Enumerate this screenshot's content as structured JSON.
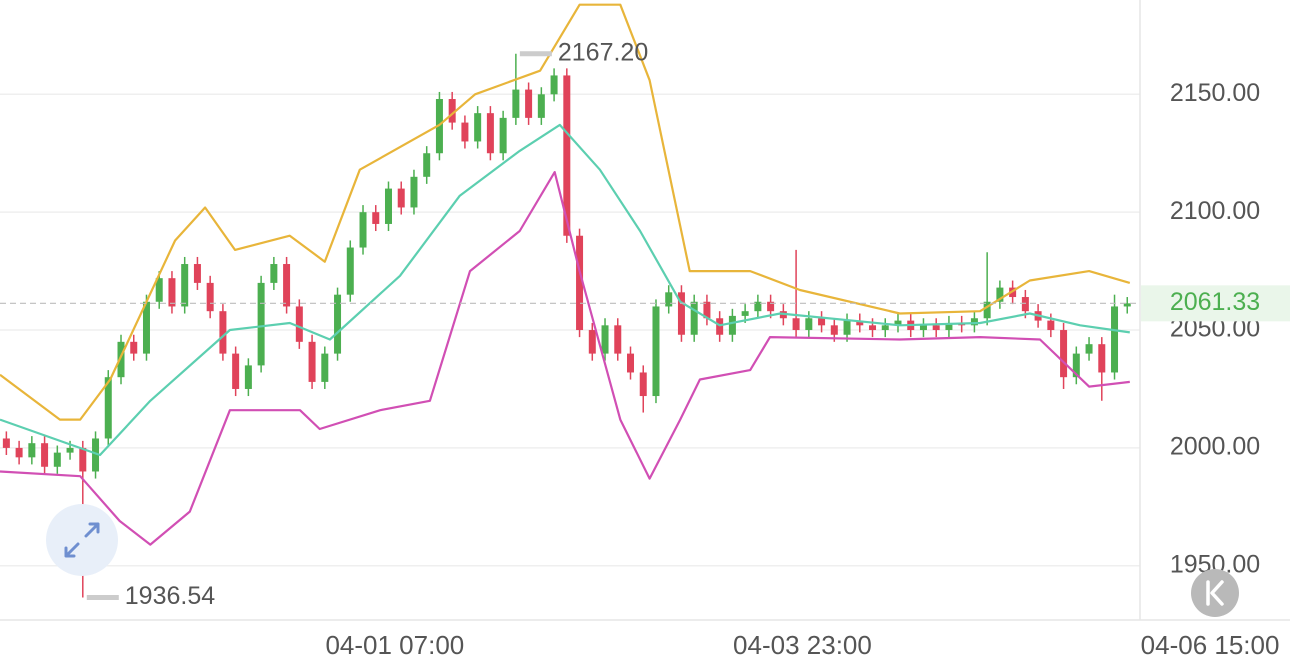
{
  "chart_data": {
    "type": "candlestick",
    "x": [
      1,
      3,
      5,
      7,
      9,
      11,
      13,
      15,
      17,
      19,
      21,
      23,
      25,
      27,
      29,
      31,
      33,
      35,
      37,
      39,
      41,
      43,
      45,
      47,
      49,
      51,
      53,
      55,
      57,
      59,
      61,
      63,
      65,
      67,
      69,
      71,
      73,
      75,
      77,
      79,
      81,
      83,
      85,
      87,
      89,
      91,
      93,
      95,
      97,
      99,
      101,
      103,
      105,
      107,
      109,
      111,
      113,
      115,
      117,
      119,
      121,
      123,
      125,
      127,
      129,
      131,
      133,
      135,
      137,
      139,
      141,
      143,
      145,
      147,
      149,
      151,
      153,
      155,
      157,
      159,
      161,
      163,
      165,
      167,
      169,
      171,
      173,
      175,
      177
    ],
    "open": [
      2004,
      2000,
      1996,
      2002,
      1992,
      1998,
      2000,
      1990,
      2004,
      2030,
      2045,
      2040,
      2062,
      2072,
      2060,
      2078,
      2070,
      2058,
      2040,
      2025,
      2035,
      2070,
      2078,
      2060,
      2045,
      2028,
      2040,
      2065,
      2085,
      2100,
      2095,
      2110,
      2102,
      2115,
      2125,
      2148,
      2138,
      2130,
      2142,
      2125,
      2140,
      2152,
      2140,
      2150,
      2158,
      2090,
      2050,
      2040,
      2052,
      2040,
      2032,
      2022,
      2060,
      2066,
      2048,
      2062,
      2055,
      2048,
      2056,
      2058,
      2062,
      2058,
      2055,
      2050,
      2055,
      2052,
      2048,
      2054,
      2052,
      2050,
      2052,
      2054,
      2050,
      2052,
      2050,
      2053,
      2052,
      2055,
      2062,
      2068,
      2064,
      2058,
      2054,
      2050,
      2030,
      2040,
      2044,
      2032,
      2060
    ],
    "high": [
      2007,
      2003,
      2005,
      2005,
      2001,
      2003,
      2003,
      2007,
      2033,
      2048,
      2048,
      2065,
      2075,
      2075,
      2081,
      2081,
      2073,
      2061,
      2043,
      2038,
      2073,
      2081,
      2081,
      2063,
      2048,
      2043,
      2068,
      2088,
      2103,
      2103,
      2113,
      2113,
      2118,
      2128,
      2151,
      2151,
      2141,
      2145,
      2145,
      2143,
      2167.2,
      2155,
      2153,
      2161,
      2161,
      2093,
      2053,
      2055,
      2055,
      2043,
      2035,
      2063,
      2069,
      2069,
      2065,
      2065,
      2058,
      2059,
      2061,
      2065,
      2065,
      2061,
      2084,
      2058,
      2058,
      2055,
      2057,
      2057,
      2055,
      2055,
      2057,
      2057,
      2055,
      2055,
      2056,
      2056,
      2058,
      2083,
      2071,
      2071,
      2067,
      2061,
      2057,
      2053,
      2043,
      2047,
      2047,
      2065,
      2064
    ],
    "low": [
      1997,
      1993,
      1993,
      1989,
      1989,
      1995,
      1936.54,
      1987,
      2001,
      2027,
      2037,
      2037,
      2059,
      2057,
      2057,
      2067,
      2055,
      2037,
      2022,
      2022,
      2032,
      2067,
      2057,
      2042,
      2025,
      2025,
      2037,
      2062,
      2082,
      2092,
      2092,
      2099,
      2099,
      2112,
      2122,
      2135,
      2127,
      2127,
      2122,
      2122,
      2137,
      2137,
      2137,
      2147,
      2087,
      2047,
      2037,
      2037,
      2037,
      2029,
      2015,
      2019,
      2057,
      2045,
      2045,
      2052,
      2045,
      2045,
      2053,
      2055,
      2055,
      2052,
      2047,
      2047,
      2049,
      2045,
      2045,
      2049,
      2047,
      2047,
      2049,
      2047,
      2047,
      2047,
      2047,
      2049,
      2049,
      2052,
      2059,
      2061,
      2055,
      2051,
      2047,
      2025,
      2027,
      2037,
      2020,
      2029,
      2057
    ],
    "close": [
      2000,
      1996,
      2002,
      1992,
      1998,
      2000,
      1990,
      2004,
      2030,
      2045,
      2040,
      2062,
      2072,
      2060,
      2078,
      2070,
      2058,
      2040,
      2025,
      2035,
      2070,
      2078,
      2060,
      2045,
      2028,
      2040,
      2065,
      2085,
      2100,
      2095,
      2110,
      2102,
      2115,
      2125,
      2148,
      2138,
      2130,
      2142,
      2125,
      2140,
      2152,
      2140,
      2150,
      2158,
      2090,
      2050,
      2040,
      2052,
      2040,
      2032,
      2022,
      2060,
      2066,
      2048,
      2062,
      2055,
      2048,
      2056,
      2058,
      2062,
      2058,
      2055,
      2050,
      2055,
      2052,
      2048,
      2054,
      2052,
      2050,
      2052,
      2054,
      2050,
      2052,
      2050,
      2053,
      2052,
      2055,
      2062,
      2068,
      2064,
      2058,
      2054,
      2050,
      2030,
      2040,
      2044,
      2032,
      2060,
      2061.33
    ],
    "up_color": "#4caf50",
    "down_color": "#e0435a",
    "bands": [
      {
        "color": "#e8b53a",
        "x": [
          0,
          9.4,
          12.6,
          17.3,
          27.5,
          32.2,
          36.9,
          45.5,
          51,
          56.5,
          69,
          74.6,
          84.8,
          91,
          97.4,
          102,
          108.3,
          117.8,
          125.6,
          141.3,
          153.9,
          161.7,
          171,
          177.4
        ],
        "values": [
          2031,
          2012,
          2012,
          2029,
          2088,
          2102,
          2084,
          2090,
          2079,
          2118,
          2137,
          2150,
          2160,
          2188,
          2188,
          2156,
          2075,
          2075,
          2067,
          2057,
          2058,
          2071,
          2075,
          2070
        ]
      },
      {
        "color": "#5ccfb0",
        "x": [
          0,
          15.7,
          23.6,
          36.1,
          45.5,
          51.8,
          62.8,
          72.2,
          81.6,
          87.9,
          94.2,
          100.5,
          106.8,
          113,
          122.5,
          141.3,
          153.9,
          161.7,
          169.6,
          177.4
        ],
        "values": [
          2012,
          1997,
          2020,
          2050,
          2053,
          2046,
          2073,
          2107,
          2126,
          2137,
          2118,
          2092,
          2062,
          2052,
          2057,
          2052,
          2053,
          2057,
          2052,
          2049
        ]
      },
      {
        "color": "#d14fb4",
        "x": [
          0,
          12.6,
          18.8,
          23.6,
          29.8,
          36.1,
          47.1,
          50.2,
          59.7,
          67.5,
          73.8,
          81.6,
          87.1,
          91,
          97.4,
          102,
          106.8,
          109.9,
          117.8,
          120.9,
          141.3,
          153.9,
          163.3,
          171,
          177.4
        ],
        "values": [
          1990,
          1988,
          1969,
          1959,
          1973,
          2016,
          2016,
          2008,
          2016,
          2020,
          2075,
          2092,
          2117,
          2075,
          2012,
          1987,
          2012,
          2029,
          2033,
          2047,
          2046,
          2047,
          2046,
          2026,
          2028
        ]
      }
    ],
    "xlim": [
      0,
      179
    ],
    "xticks": [
      {
        "value": 62,
        "label": "04-01 07:00"
      },
      {
        "value": 126,
        "label": "04-03 23:00"
      },
      {
        "value": 190,
        "label": "04-06 15:00"
      }
    ],
    "ylim": [
      1927,
      2190
    ],
    "yticks": [
      {
        "value": 1950,
        "label": "1950.00"
      },
      {
        "value": 2000,
        "label": "2000.00"
      },
      {
        "value": 2050,
        "label": "2050.00"
      },
      {
        "value": 2100,
        "label": "2100.00"
      },
      {
        "value": 2150,
        "label": "2150.00"
      }
    ],
    "grid": true,
    "high_marker": {
      "x": 81,
      "value": 2167.2,
      "label": "2167.20"
    },
    "low_marker": {
      "x": 13,
      "value": 1936.54,
      "label": "1936.54"
    },
    "last_price": {
      "value": 2061.33,
      "label": "2061.33"
    }
  }
}
